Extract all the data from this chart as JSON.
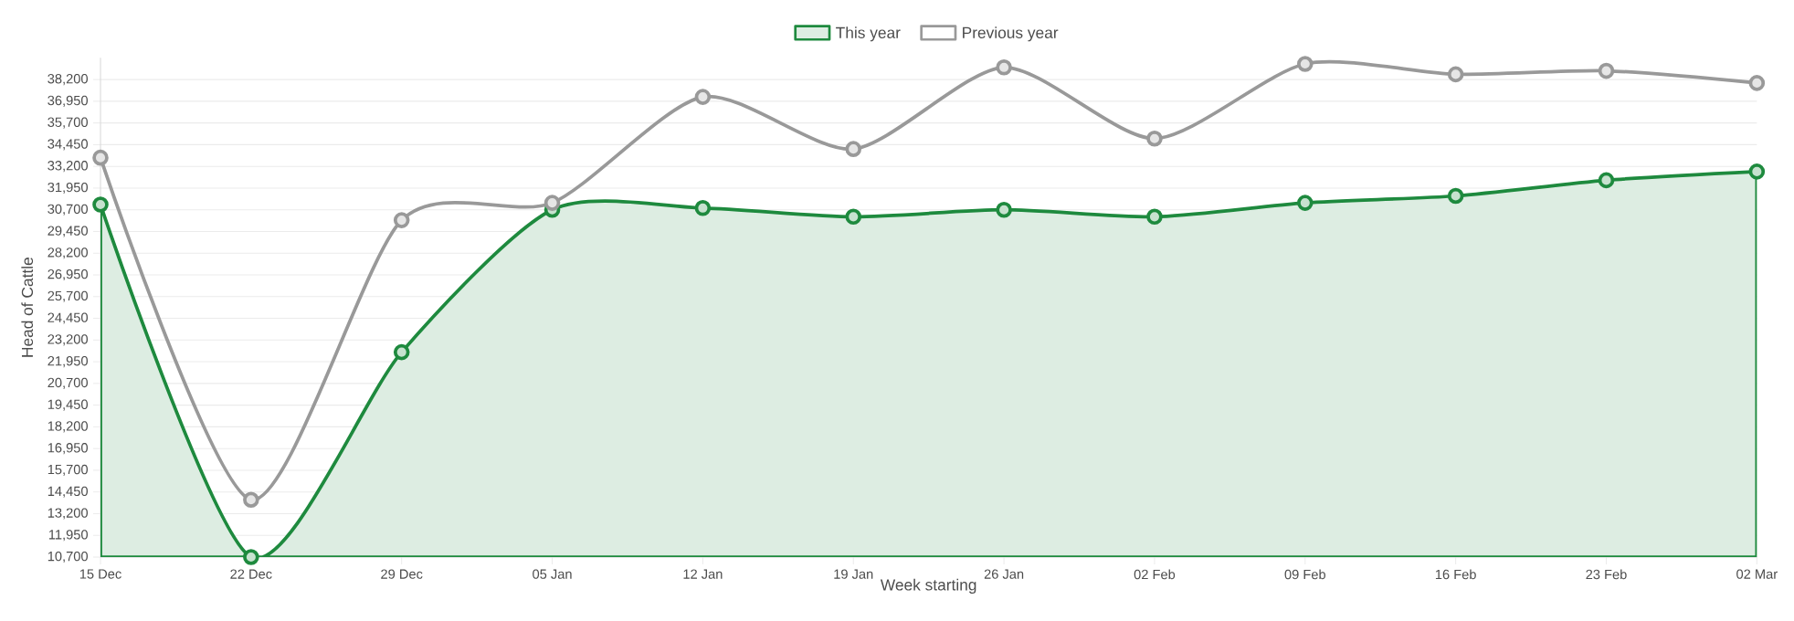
{
  "chart_data": {
    "type": "line",
    "xlabel": "Week starting",
    "ylabel": "Head of Cattle",
    "categories": [
      "15 Dec",
      "22 Dec",
      "29 Dec",
      "05 Jan",
      "12 Jan",
      "19 Jan",
      "26 Jan",
      "02 Feb",
      "09 Feb",
      "16 Feb",
      "23 Feb",
      "02 Mar"
    ],
    "series": [
      {
        "name": "This year",
        "type": "area",
        "color": "#1e8a3e",
        "values": [
          31000,
          10700,
          22500,
          30700,
          30800,
          30300,
          30700,
          30300,
          31100,
          31500,
          32400,
          32900
        ]
      },
      {
        "name": "Previous year",
        "type": "line",
        "color": "#999999",
        "values": [
          33700,
          14000,
          30100,
          31100,
          37200,
          34200,
          38900,
          34800,
          39100,
          38500,
          38700,
          38000
        ]
      }
    ],
    "ylim": [
      10700,
      39450
    ],
    "yticks": [
      {
        "value": 10700,
        "label": "10,700"
      },
      {
        "value": 11950,
        "label": "11,950"
      },
      {
        "value": 13200,
        "label": "13,200"
      },
      {
        "value": 14450,
        "label": "14,450"
      },
      {
        "value": 15700,
        "label": "15,700"
      },
      {
        "value": 16950,
        "label": "16,950"
      },
      {
        "value": 18200,
        "label": "18,200"
      },
      {
        "value": 19450,
        "label": "19,450"
      },
      {
        "value": 20700,
        "label": "20,700"
      },
      {
        "value": 21950,
        "label": "21,950"
      },
      {
        "value": 23200,
        "label": "23,200"
      },
      {
        "value": 24450,
        "label": "24,450"
      },
      {
        "value": 25700,
        "label": "25,700"
      },
      {
        "value": 26950,
        "label": "26,950"
      },
      {
        "value": 28200,
        "label": "28,200"
      },
      {
        "value": 29450,
        "label": "29,450"
      },
      {
        "value": 30700,
        "label": "30,700"
      },
      {
        "value": 31950,
        "label": "31,950"
      },
      {
        "value": 33200,
        "label": "33,200"
      },
      {
        "value": 34450,
        "label": "34,450"
      },
      {
        "value": 35700,
        "label": "35,700"
      },
      {
        "value": 36950,
        "label": "36,950"
      },
      {
        "value": 38200,
        "label": "38,200"
      }
    ],
    "grid": "y",
    "legend": "top",
    "marker": "circle",
    "line_style": "solid"
  }
}
